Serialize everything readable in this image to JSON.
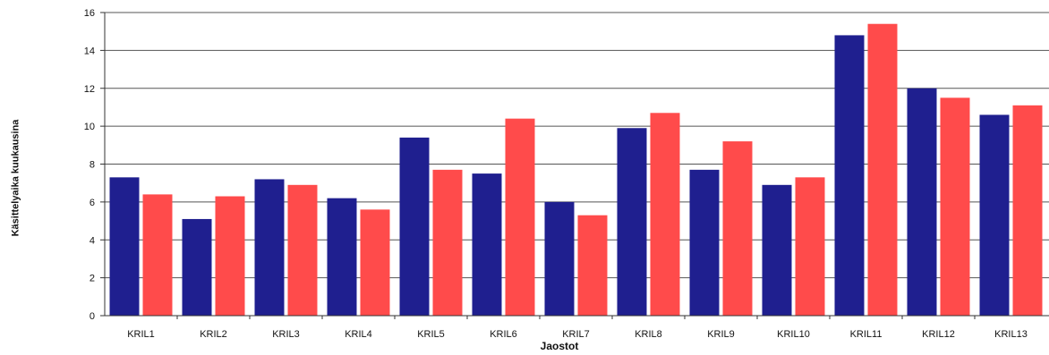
{
  "chart_data": {
    "type": "bar",
    "title": "",
    "xlabel": "Jaostot",
    "ylabel": "Käsittelyaika kuukausina",
    "ylim": [
      0,
      16
    ],
    "yticks": [
      0,
      2,
      4,
      6,
      8,
      10,
      12,
      14,
      16
    ],
    "grid": true,
    "categories": [
      "KRIL1",
      "KRIL2",
      "KRIL3",
      "KRIL4",
      "KRIL5",
      "KRIL6",
      "KRIL7",
      "KRIL8",
      "KRIL9",
      "KRIL10",
      "KRIL11",
      "KRIL12",
      "KRIL13"
    ],
    "series": [
      {
        "color": "#1f1f8f",
        "values": [
          7.3,
          5.1,
          7.2,
          6.2,
          9.4,
          7.5,
          6.0,
          9.9,
          7.7,
          6.9,
          14.8,
          12.0,
          10.6
        ]
      },
      {
        "color": "#ff4b4b",
        "values": [
          6.4,
          6.3,
          6.9,
          5.6,
          7.7,
          10.4,
          5.3,
          10.7,
          9.2,
          7.3,
          15.4,
          11.5,
          11.1
        ]
      }
    ]
  }
}
